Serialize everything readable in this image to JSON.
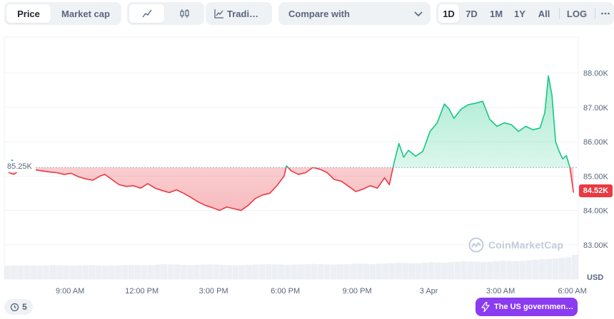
{
  "toolbar": {
    "price_tab": "Price",
    "market_cap_tab": "Market cap",
    "line_icon": "line-chart-icon",
    "candle_icon": "candlestick-icon",
    "trading_label": "Tradi…",
    "trading_icon": "trading-view-icon",
    "compare_label": "Compare with",
    "compare_icon": "chevron-down-icon",
    "ranges": [
      "1D",
      "7D",
      "1M",
      "1Y",
      "All"
    ],
    "active_range": "1D",
    "log_label": "LOG",
    "more_icon": "more-horizontal-icon"
  },
  "chart_data": {
    "type": "area",
    "baseline_value": 85.25,
    "baseline_label": "85.25K",
    "last_value": 84.52,
    "last_label": "84.52K",
    "y_ticks": [
      83.0,
      84.0,
      85.0,
      86.0,
      87.0,
      88.0
    ],
    "y_tick_labels": [
      "83.00K",
      "84.00K",
      "85.00K",
      "86.00K",
      "87.00K",
      "88.00K"
    ],
    "ylim": [
      82.0,
      89.05
    ],
    "y_unit": "USD",
    "x_range": [
      0.0,
      24.0
    ],
    "x_ticks": [
      2.75,
      5.75,
      8.75,
      11.75,
      14.75,
      17.75,
      20.75,
      23.75
    ],
    "x_tick_labels": [
      "9:00 AM",
      "12:00 PM",
      "3:00 PM",
      "6:00 PM",
      "9:00 PM",
      "3 Apr",
      "3:00 AM",
      "6:00 AM"
    ],
    "grid": true,
    "up_color": "#16c784",
    "down_color": "#ea3943",
    "points": [
      [
        0.0,
        85.25
      ],
      [
        0.2,
        85.1
      ],
      [
        0.4,
        85.05
      ],
      [
        0.6,
        85.15
      ],
      [
        0.8,
        85.3
      ],
      [
        1.0,
        85.2
      ],
      [
        1.3,
        85.18
      ],
      [
        1.6,
        85.15
      ],
      [
        1.9,
        85.12
      ],
      [
        2.2,
        85.1
      ],
      [
        2.5,
        85.05
      ],
      [
        2.8,
        85.08
      ],
      [
        3.1,
        84.98
      ],
      [
        3.4,
        84.92
      ],
      [
        3.7,
        84.88
      ],
      [
        4.0,
        85.0
      ],
      [
        4.2,
        85.05
      ],
      [
        4.5,
        84.9
      ],
      [
        4.8,
        84.75
      ],
      [
        5.1,
        84.7
      ],
      [
        5.4,
        84.72
      ],
      [
        5.7,
        84.65
      ],
      [
        6.0,
        84.78
      ],
      [
        6.3,
        84.65
      ],
      [
        6.6,
        84.58
      ],
      [
        6.9,
        84.52
      ],
      [
        7.2,
        84.6
      ],
      [
        7.5,
        84.5
      ],
      [
        7.8,
        84.38
      ],
      [
        8.1,
        84.25
      ],
      [
        8.4,
        84.15
      ],
      [
        8.7,
        84.08
      ],
      [
        9.0,
        84.0
      ],
      [
        9.3,
        84.1
      ],
      [
        9.6,
        84.05
      ],
      [
        9.9,
        84.0
      ],
      [
        10.2,
        84.15
      ],
      [
        10.5,
        84.35
      ],
      [
        10.8,
        84.45
      ],
      [
        11.1,
        84.5
      ],
      [
        11.4,
        84.72
      ],
      [
        11.7,
        85.0
      ],
      [
        11.8,
        85.3
      ],
      [
        12.0,
        85.15
      ],
      [
        12.3,
        85.05
      ],
      [
        12.6,
        85.1
      ],
      [
        12.9,
        85.25
      ],
      [
        13.2,
        85.2
      ],
      [
        13.5,
        85.1
      ],
      [
        13.8,
        84.9
      ],
      [
        14.1,
        84.85
      ],
      [
        14.4,
        84.7
      ],
      [
        14.7,
        84.55
      ],
      [
        15.0,
        84.62
      ],
      [
        15.3,
        84.72
      ],
      [
        15.6,
        84.65
      ],
      [
        15.9,
        84.95
      ],
      [
        16.1,
        84.75
      ],
      [
        16.3,
        85.4
      ],
      [
        16.5,
        85.95
      ],
      [
        16.7,
        85.55
      ],
      [
        16.9,
        85.75
      ],
      [
        17.2,
        85.58
      ],
      [
        17.5,
        85.72
      ],
      [
        17.8,
        86.3
      ],
      [
        18.1,
        86.55
      ],
      [
        18.4,
        87.1
      ],
      [
        18.6,
        86.95
      ],
      [
        18.8,
        86.68
      ],
      [
        19.1,
        86.95
      ],
      [
        19.4,
        87.08
      ],
      [
        19.7,
        87.12
      ],
      [
        20.0,
        87.18
      ],
      [
        20.3,
        86.65
      ],
      [
        20.6,
        86.45
      ],
      [
        20.9,
        86.55
      ],
      [
        21.2,
        86.5
      ],
      [
        21.5,
        86.3
      ],
      [
        21.8,
        86.45
      ],
      [
        22.1,
        86.35
      ],
      [
        22.4,
        86.4
      ],
      [
        22.6,
        86.85
      ],
      [
        22.75,
        87.92
      ],
      [
        22.9,
        87.35
      ],
      [
        23.05,
        86.0
      ],
      [
        23.2,
        85.72
      ],
      [
        23.35,
        85.5
      ],
      [
        23.5,
        85.6
      ],
      [
        23.65,
        85.25
      ],
      [
        23.8,
        84.52
      ]
    ],
    "volume": [
      0.55,
      0.56,
      0.55,
      0.57,
      0.56,
      0.55,
      0.56,
      0.58,
      0.57,
      0.56,
      0.55,
      0.56,
      0.57,
      0.58,
      0.56,
      0.55,
      0.56,
      0.57,
      0.58,
      0.59,
      0.58,
      0.57,
      0.58,
      0.6,
      0.62,
      0.61,
      0.6,
      0.59,
      0.58,
      0.59,
      0.6,
      0.61,
      0.6,
      0.59,
      0.58,
      0.57,
      0.58,
      0.59,
      0.6,
      0.61,
      0.62,
      0.61,
      0.6,
      0.59,
      0.6,
      0.61,
      0.62,
      0.63,
      0.62,
      0.61,
      0.6,
      0.61,
      0.62,
      0.63,
      0.64,
      0.63,
      0.62,
      0.63,
      0.65,
      0.66,
      0.67,
      0.66,
      0.65,
      0.66,
      0.68,
      0.7,
      0.69,
      0.68,
      0.7,
      0.72,
      0.74,
      0.73,
      0.72,
      0.71,
      0.72,
      0.74,
      0.76,
      0.75,
      0.74,
      0.76,
      0.78,
      0.8,
      0.82,
      0.84,
      0.86,
      0.88,
      0.9,
      1.0
    ]
  },
  "watermark": {
    "text": "CoinMarketCap",
    "icon": "coinmarketcap-logo-icon"
  },
  "history_chip": {
    "icon": "history-clock-icon",
    "count": "5"
  },
  "news_chip": {
    "icon": "lightning-icon",
    "text": "The US government…"
  }
}
